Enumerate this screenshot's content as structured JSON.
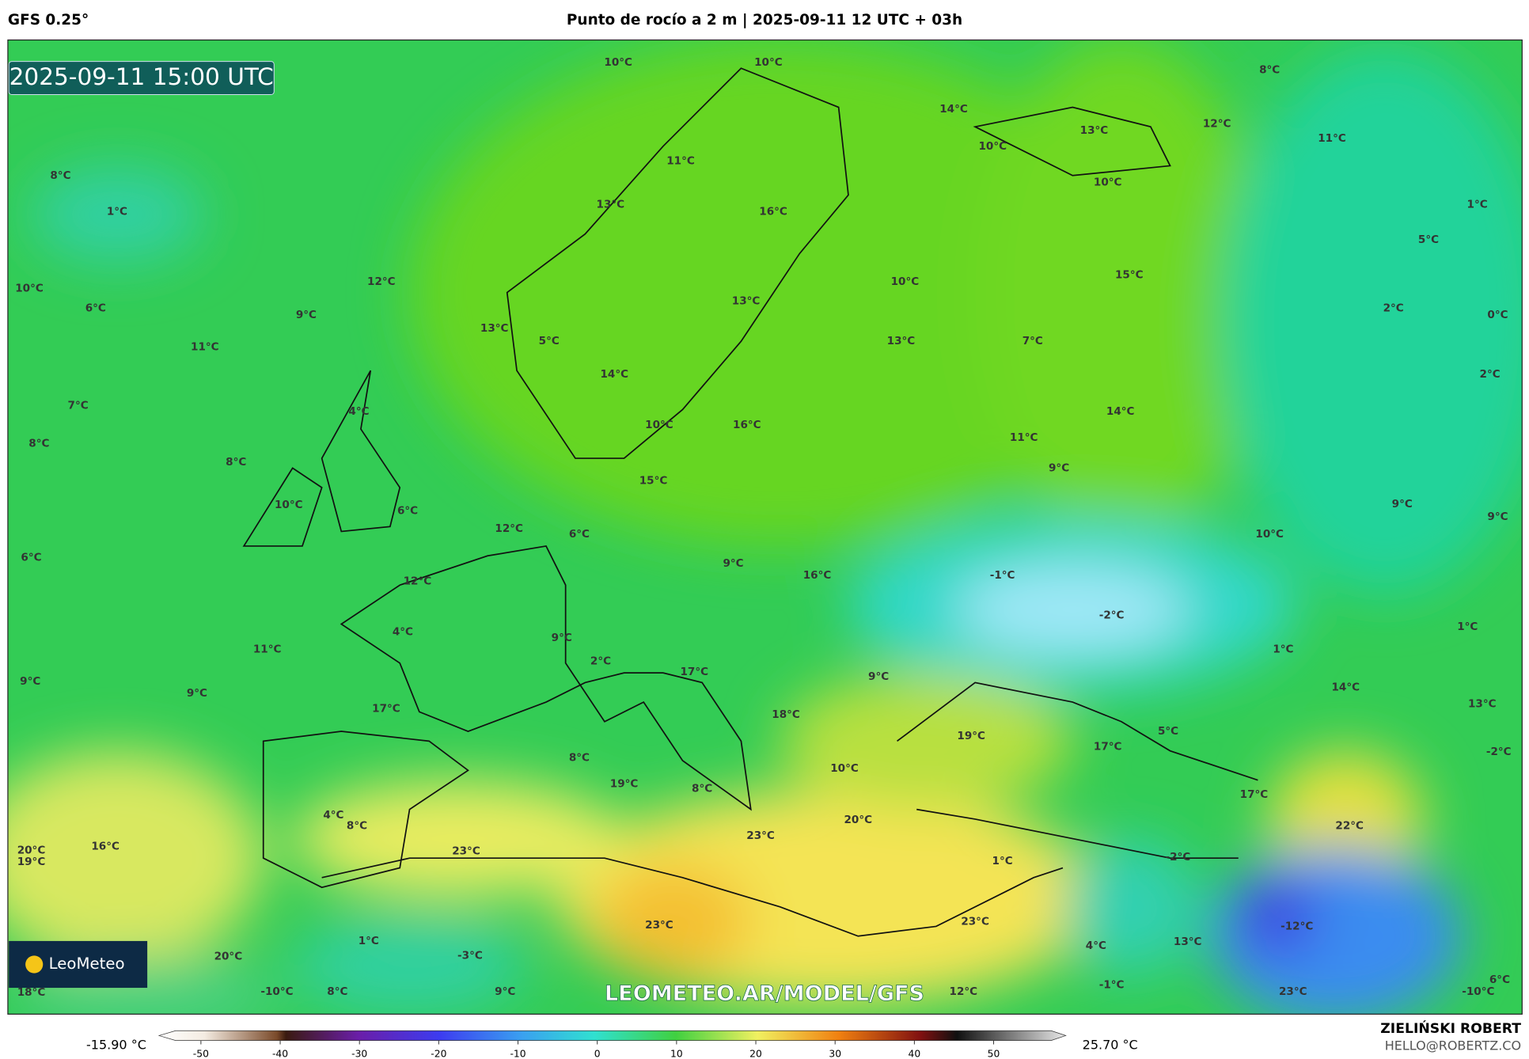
{
  "header": {
    "model": "GFS 0.25°",
    "title": "Punto de rocío a 2 m | 2025-09-11 12 UTC + 03h"
  },
  "map": {
    "timestamp": "2025-09-11 15:00 UTC",
    "logo": "LeoMeteo",
    "watermark": "LEOMETEO.AR/MODEL/GFS",
    "labels": [
      "10°C",
      "10°C",
      "8°C",
      "14°C",
      "13°C",
      "12°C",
      "11°C",
      "10°C",
      "10°C",
      "11°C",
      "8°C",
      "1°C",
      "13°C",
      "16°C",
      "1°C",
      "5°C",
      "15°C",
      "10°C",
      "10°C",
      "12°C",
      "9°C",
      "6°C",
      "13°C",
      "2°C",
      "0°C",
      "13°C",
      "5°C",
      "13°C",
      "7°C",
      "11°C",
      "14°C",
      "2°C",
      "7°C",
      "4°C",
      "14°C",
      "10°C",
      "16°C",
      "8°C",
      "11°C",
      "8°C",
      "9°C",
      "15°C",
      "10°C",
      "6°C",
      "9°C",
      "9°C",
      "12°C",
      "6°C",
      "10°C",
      "6°C",
      "9°C",
      "16°C",
      "-1°C",
      "12°C",
      "-2°C",
      "1°C",
      "4°C",
      "9°C",
      "11°C",
      "1°C",
      "2°C",
      "17°C",
      "9°C",
      "9°C",
      "9°C",
      "14°C",
      "17°C",
      "13°C",
      "18°C",
      "5°C",
      "19°C",
      "17°C",
      "-2°C",
      "8°C",
      "10°C",
      "19°C",
      "8°C",
      "17°C",
      "4°C",
      "8°C",
      "20°C",
      "22°C",
      "23°C",
      "16°C",
      "23°C",
      "20°C",
      "19°C",
      "-2°C",
      "1°C",
      "23°C",
      "23°C",
      "-12°C",
      "1°C",
      "4°C",
      "13°C",
      "-3°C",
      "20°C",
      "6°C",
      "-1°C",
      "18°C",
      "-10°C",
      "8°C",
      "9°C",
      "12°C",
      "23°C",
      "-10°C"
    ]
  },
  "legend": {
    "min_label": "-15.90 °C",
    "max_label": "25.70 °C",
    "ticks": [
      -50,
      -40,
      -30,
      -20,
      -10,
      0,
      10,
      20,
      30,
      40,
      50
    ]
  },
  "footer": {
    "author": "ZIELIŃSKI ROBERT",
    "contact": "HELLO@ROBERTZ.CO"
  }
}
